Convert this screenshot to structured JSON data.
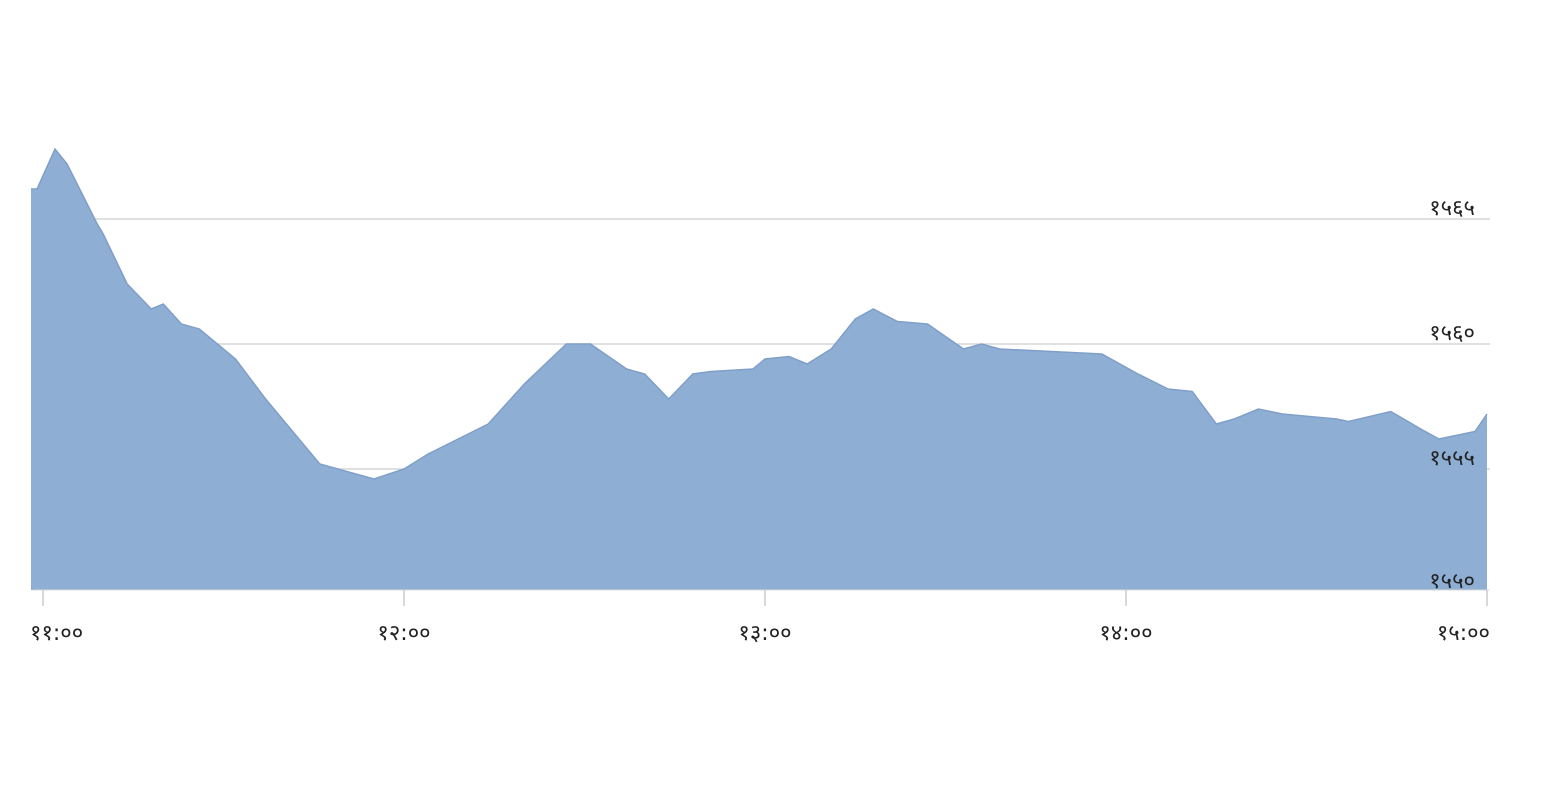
{
  "chart_data": {
    "type": "area",
    "title": "",
    "xlabel": "",
    "ylabel": "",
    "ylim": [
      1550,
      1568
    ],
    "yticks": [
      1565,
      1560,
      1555,
      1550
    ],
    "ytick_labels": [
      "१५६५",
      "१५६०",
      "१५५५",
      "१५५०"
    ],
    "xticks": [
      "11:00",
      "12:00",
      "13:00",
      "14:00",
      "15:00"
    ],
    "xtick_labels": [
      "११:००",
      "१२:००",
      "१३:००",
      "१४:००",
      "१५:००"
    ],
    "grid": "horizontal",
    "fill_color": "#8eaed4",
    "line_color": "#7f9fc8",
    "x": [
      "10:58",
      "10:59",
      "11:02",
      "11:04",
      "11:09",
      "11:10",
      "11:14",
      "11:18",
      "11:20",
      "11:23",
      "11:26",
      "11:32",
      "11:37",
      "11:46",
      "11:55",
      "12:00",
      "12:04",
      "12:14",
      "12:20",
      "12:27",
      "12:31",
      "12:37",
      "12:40",
      "12:44",
      "12:48",
      "12:51",
      "12:58",
      "13:00",
      "13:04",
      "13:07",
      "13:11",
      "13:15",
      "13:18",
      "13:22",
      "13:27",
      "13:33",
      "13:36",
      "13:39",
      "13:56",
      "14:02",
      "14:07",
      "14:11",
      "14:15",
      "14:18",
      "14:22",
      "14:26",
      "14:35",
      "14:37",
      "14:44",
      "14:49",
      "14:52",
      "14:58",
      "15:00"
    ],
    "values": [
      1566.2,
      1566.2,
      1567.8,
      1567.2,
      1564.8,
      1564.4,
      1562.4,
      1561.4,
      1561.6,
      1560.8,
      1560.6,
      1559.4,
      1557.8,
      1555.2,
      1554.6,
      1555.0,
      1555.6,
      1556.8,
      1558.4,
      1560.0,
      1560.0,
      1559.0,
      1558.8,
      1557.8,
      1558.8,
      1558.9,
      1559.0,
      1559.4,
      1559.5,
      1559.2,
      1559.8,
      1561.0,
      1561.4,
      1560.9,
      1560.8,
      1559.8,
      1560.0,
      1559.8,
      1559.6,
      1558.8,
      1558.2,
      1558.1,
      1556.8,
      1557.0,
      1557.4,
      1557.2,
      1557.0,
      1556.9,
      1557.3,
      1556.6,
      1556.2,
      1556.5,
      1557.2
    ]
  }
}
